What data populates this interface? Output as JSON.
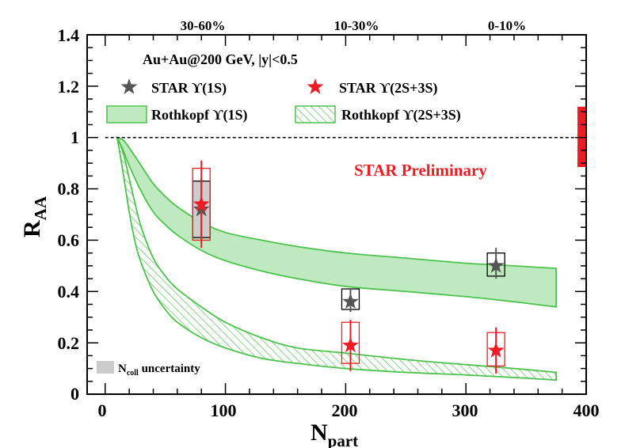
{
  "chart_data": {
    "type": "scatter",
    "xlabel": "N",
    "xlabel_sub": "part",
    "ylabel": "R",
    "ylabel_sub": "AA",
    "xlim": [
      -15,
      400
    ],
    "ylim": [
      0,
      1.4
    ],
    "xticks": [
      "0",
      "100",
      "200",
      "300",
      "400"
    ],
    "yticks": [
      "0",
      "0.2",
      "0.4",
      "0.6",
      "0.8",
      "1",
      "1.2",
      "1.4"
    ],
    "top_axis_labels": [
      {
        "x": 80,
        "label": "30-60%"
      },
      {
        "x": 204,
        "label": "10-30%"
      },
      {
        "x": 325,
        "label": "0-10%"
      }
    ],
    "annotation": "Au+Au@200 GeV, |y|<0.5",
    "preliminary_label": "STAR Preliminary",
    "ncoll_legend": "N",
    "ncoll_legend_sub": "coll",
    "ncoll_legend_tail": " uncertainty",
    "reference_line": 1.0,
    "ncoll_band": [
      0.885,
      1.12
    ],
    "series": [
      {
        "name": "STAR ϒ(1S)",
        "label_pre": "STAR  ϒ(1S)",
        "color": "#555555",
        "points": [
          {
            "x": 80,
            "y": 0.72,
            "stat": [
              0.61,
              0.84
            ],
            "sys": [
              0.61,
              0.83
            ]
          },
          {
            "x": 204,
            "y": 0.36,
            "stat": [
              0.32,
              0.41
            ],
            "sys": [
              0.33,
              0.41
            ]
          },
          {
            "x": 325,
            "y": 0.5,
            "stat": [
              0.45,
              0.57
            ],
            "sys": [
              0.46,
              0.55
            ]
          }
        ]
      },
      {
        "name": "STAR ϒ(2S+3S)",
        "label_pre": "STAR  ϒ(2S+3S)",
        "color": "#ee1c24",
        "points": [
          {
            "x": 80,
            "y": 0.74,
            "stat": [
              0.57,
              0.91
            ],
            "sys": [
              0.6,
              0.88
            ]
          },
          {
            "x": 204,
            "y": 0.19,
            "stat": [
              0.09,
              0.29
            ],
            "sys": [
              0.12,
              0.28
            ]
          },
          {
            "x": 325,
            "y": 0.17,
            "stat": [
              0.08,
              0.26
            ],
            "sys": [
              0.11,
              0.24
            ]
          }
        ]
      }
    ],
    "bands": [
      {
        "name": "Rothkopf ϒ(1S)",
        "style": "filled",
        "x": [
          10,
          15,
          20,
          30,
          40,
          50,
          60,
          80,
          100,
          130,
          160,
          200,
          250,
          300,
          340,
          375
        ],
        "upper": [
          1.0,
          0.99,
          0.96,
          0.89,
          0.82,
          0.77,
          0.73,
          0.67,
          0.63,
          0.6,
          0.575,
          0.55,
          0.53,
          0.51,
          0.5,
          0.49
        ],
        "lower": [
          1.0,
          0.95,
          0.89,
          0.79,
          0.71,
          0.66,
          0.62,
          0.56,
          0.52,
          0.48,
          0.45,
          0.42,
          0.4,
          0.38,
          0.36,
          0.34
        ]
      },
      {
        "name": "Rothkopf ϒ(2S+3S)",
        "style": "hatched",
        "x": [
          10,
          15,
          20,
          25,
          30,
          40,
          50,
          60,
          80,
          100,
          130,
          160,
          200,
          250,
          300,
          340,
          375
        ],
        "upper": [
          1.0,
          0.94,
          0.84,
          0.74,
          0.65,
          0.53,
          0.46,
          0.41,
          0.34,
          0.28,
          0.22,
          0.18,
          0.16,
          0.135,
          0.115,
          0.1,
          0.085
        ],
        "lower": [
          1.0,
          0.86,
          0.71,
          0.59,
          0.51,
          0.4,
          0.33,
          0.28,
          0.22,
          0.18,
          0.14,
          0.12,
          0.1,
          0.085,
          0.075,
          0.065,
          0.055
        ]
      }
    ],
    "legend": [
      {
        "label": "STAR  ϒ(1S)",
        "kind": "marker",
        "color": "#555555"
      },
      {
        "label": "STAR  ϒ(2S+3S)",
        "kind": "marker",
        "color": "#ee1c24"
      },
      {
        "label": "Rothkopf  ϒ(1S)",
        "kind": "filled-band"
      },
      {
        "label": "Rothkopf  ϒ(2S+3S)",
        "kind": "hatched-band"
      }
    ],
    "colors": {
      "band_fill": "#bfeabf",
      "band_line": "#4cc34c",
      "star_gray": "#555555",
      "star_red": "#ee1c24",
      "ncoll_box": "#cccccc"
    }
  }
}
